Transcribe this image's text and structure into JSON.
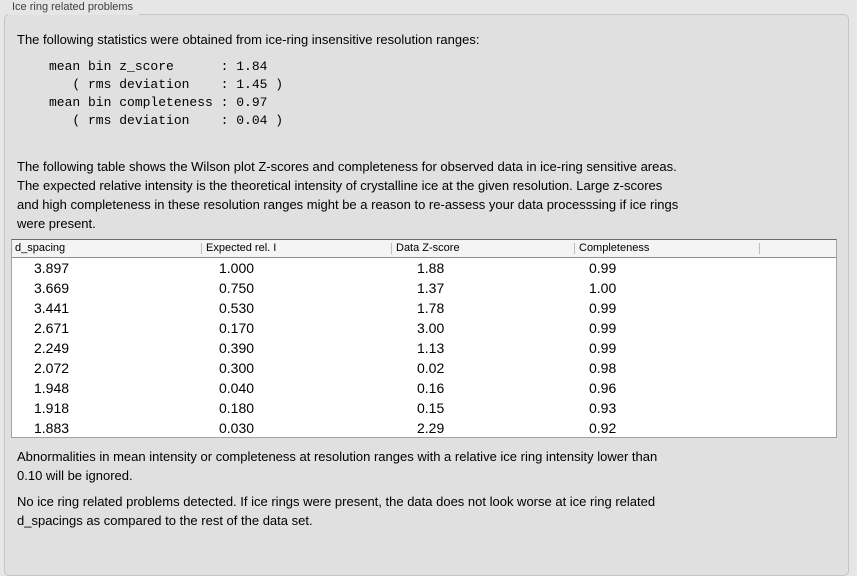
{
  "panel": {
    "title": "Ice ring related problems"
  },
  "intro": {
    "text": "The following statistics were obtained from ice-ring insensitive resolution ranges:"
  },
  "stats_block": {
    "text": "mean bin z_score      : 1.84\n   ( rms deviation    : 1.45 )\nmean bin completeness : 0.97\n   ( rms deviation    : 0.04 )",
    "values": {
      "mean_bin_z_score": "1.84",
      "z_score_rms_deviation": "1.45",
      "mean_bin_completeness": "0.97",
      "completeness_rms_deviation": "0.04"
    }
  },
  "table_description": {
    "text": "The following table shows the Wilson plot Z-scores and completeness for observed data in ice-ring sensitive areas.\nThe expected relative intensity is the theoretical intensity of crystalline ice at the given resolution. Large z-scores\nand high completeness in these resolution ranges might be a reason to re-assess your data processsing if ice rings\nwere present."
  },
  "table": {
    "columns": [
      "d_spacing",
      "Expected rel. I",
      "Data Z-score",
      "Completeness",
      ""
    ],
    "rows": [
      [
        "3.897",
        "1.000",
        "1.88",
        "0.99"
      ],
      [
        "3.669",
        "0.750",
        "1.37",
        "1.00"
      ],
      [
        "3.441",
        "0.530",
        "1.78",
        "0.99"
      ],
      [
        "2.671",
        "0.170",
        "3.00",
        "0.99"
      ],
      [
        "2.249",
        "0.390",
        "1.13",
        "0.99"
      ],
      [
        "2.072",
        "0.300",
        "0.02",
        "0.98"
      ],
      [
        "1.948",
        "0.040",
        "0.16",
        "0.96"
      ],
      [
        "1.918",
        "0.180",
        "0.15",
        "0.93"
      ],
      [
        "1.883",
        "0.030",
        "2.29",
        "0.92"
      ]
    ]
  },
  "notes": {
    "ignore_note": "Abnormalities in mean intensity or completeness at resolution ranges with a relative ice ring intensity lower than\n0.10 will be ignored.",
    "conclusion": "No ice ring related problems detected. If ice rings were present, the data does not look worse at ice ring related\nd_spacings as compared to the rest of the data set."
  },
  "colors": {
    "page_background": "#e6e6e6",
    "groupbox_background": "#e0e0e0",
    "groupbox_border": "#c4c4c4",
    "table_header_background": "#f4f4f4",
    "table_border": "#a3a3a3",
    "text": "#000000"
  }
}
